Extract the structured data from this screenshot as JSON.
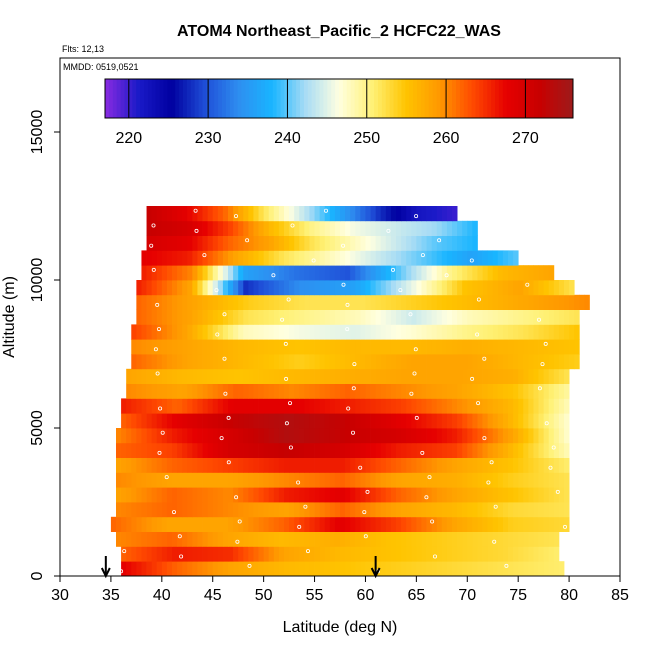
{
  "chart_data": {
    "type": "heatmap",
    "title": "ATOM4 Northeast_Pacific_2 HCFC22_WAS",
    "flights_text": "Flts: 12,13",
    "dates_text": "MMDD: 0519,0521",
    "xlabel": "Latitude (deg N)",
    "ylabel": "Altitude (m)",
    "xlim": [
      30,
      85
    ],
    "ylim": [
      0,
      17500
    ],
    "x_ticks": [
      "30",
      "35",
      "40",
      "45",
      "50",
      "55",
      "60",
      "65",
      "70",
      "75",
      "80",
      "85"
    ],
    "y_ticks": [
      "0",
      "5000",
      "10000",
      "15000"
    ],
    "colorbar": {
      "range": [
        217,
        276
      ],
      "ticks": [
        "220",
        "230",
        "240",
        "250",
        "260",
        "270"
      ],
      "colors": [
        "#8a2be2",
        "#1a1ac8",
        "#0000a0",
        "#1f4fd8",
        "#2e8ef0",
        "#19b5ff",
        "#a8dcf5",
        "#ffffe0",
        "#fff176",
        "#ffc400",
        "#ff9800",
        "#ff4a00",
        "#e60000",
        "#c80000",
        "#9e1b1b"
      ]
    },
    "layers": [
      {
        "alt": 250,
        "lat": [
          36,
          79.5
        ],
        "values": [
          268,
          262,
          258,
          256,
          255,
          254,
          253,
          252,
          251
        ]
      },
      {
        "alt": 750,
        "lat": [
          36,
          79
        ],
        "values": [
          262,
          266,
          265,
          258,
          256,
          255,
          254,
          253,
          251
        ]
      },
      {
        "alt": 1250,
        "lat": [
          35.5,
          79
        ],
        "values": [
          260,
          262,
          258,
          256,
          257,
          255,
          254,
          253,
          252
        ]
      },
      {
        "alt": 1750,
        "lat": [
          35,
          80
        ],
        "values": [
          262,
          258,
          258,
          262,
          268,
          264,
          258,
          254,
          253
        ]
      },
      {
        "alt": 2250,
        "lat": [
          35.5,
          80
        ],
        "values": [
          260,
          262,
          260,
          258,
          262,
          258,
          256,
          253,
          252
        ]
      },
      {
        "alt": 2750,
        "lat": [
          35.5,
          80
        ],
        "values": [
          258,
          262,
          260,
          266,
          268,
          262,
          258,
          255,
          252
        ]
      },
      {
        "alt": 3250,
        "lat": [
          35.5,
          80
        ],
        "values": [
          260,
          258,
          258,
          260,
          262,
          258,
          257,
          254,
          252
        ]
      },
      {
        "alt": 3750,
        "lat": [
          35.5,
          80
        ],
        "values": [
          258,
          262,
          264,
          266,
          266,
          262,
          258,
          255,
          251
        ]
      },
      {
        "alt": 4250,
        "lat": [
          35.5,
          80
        ],
        "values": [
          262,
          264,
          270,
          272,
          270,
          266,
          264,
          256,
          248
        ]
      },
      {
        "alt": 4750,
        "lat": [
          35.5,
          80
        ],
        "values": [
          260,
          266,
          270,
          274,
          272,
          270,
          266,
          258,
          247
        ]
      },
      {
        "alt": 5250,
        "lat": [
          36,
          80
        ],
        "values": [
          262,
          268,
          272,
          274,
          272,
          268,
          264,
          256,
          247
        ]
      },
      {
        "alt": 5750,
        "lat": [
          36,
          80
        ],
        "values": [
          266,
          262,
          268,
          268,
          266,
          264,
          260,
          256,
          248
        ]
      },
      {
        "alt": 6250,
        "lat": [
          36.5,
          80
        ],
        "values": [
          260,
          258,
          262,
          260,
          262,
          260,
          258,
          255,
          249
        ]
      },
      {
        "alt": 6750,
        "lat": [
          36.5,
          80
        ],
        "values": [
          258,
          256,
          255,
          256,
          257,
          258,
          258,
          257,
          252
        ]
      },
      {
        "alt": 7250,
        "lat": [
          37,
          81
        ],
        "values": [
          262,
          258,
          256,
          254,
          256,
          258,
          258,
          256,
          254
        ]
      },
      {
        "alt": 7750,
        "lat": [
          37,
          81
        ],
        "values": [
          260,
          258,
          256,
          255,
          256,
          256,
          257,
          256,
          255
        ]
      },
      {
        "alt": 8250,
        "lat": [
          37,
          81
        ],
        "values": [
          264,
          258,
          248,
          246,
          245,
          247,
          250,
          252,
          255
        ]
      },
      {
        "alt": 8750,
        "lat": [
          37.5,
          81
        ],
        "values": [
          262,
          258,
          252,
          250,
          248,
          244,
          248,
          250,
          252
        ]
      },
      {
        "alt": 9250,
        "lat": [
          37.5,
          82
        ],
        "values": [
          262,
          258,
          254,
          252,
          252,
          254,
          256,
          258,
          260
        ]
      },
      {
        "alt": 9750,
        "lat": [
          37.5,
          80.5
        ],
        "values": [
          266,
          258,
          228,
          234,
          236,
          245,
          255,
          258,
          252
        ]
      },
      {
        "alt": 10250,
        "lat": [
          38,
          78.5
        ],
        "values": [
          266,
          260,
          236,
          232,
          230,
          240,
          250,
          256,
          258
        ]
      },
      {
        "alt": 10750,
        "lat": [
          38,
          75
        ],
        "values": [
          268,
          266,
          258,
          252,
          248,
          244,
          240,
          236,
          240
        ]
      },
      {
        "alt": 11250,
        "lat": [
          38.5,
          71
        ],
        "values": [
          270,
          268,
          262,
          258,
          252,
          248,
          244,
          240,
          238
        ]
      },
      {
        "alt": 11750,
        "lat": [
          38.5,
          71
        ],
        "values": [
          272,
          270,
          264,
          256,
          250,
          246,
          244,
          242,
          238
        ]
      },
      {
        "alt": 12250,
        "lat": [
          38.5,
          69
        ],
        "values": [
          272,
          268,
          262,
          252,
          244,
          236,
          228,
          222,
          220
        ]
      }
    ],
    "arrows_lat": [
      34.5,
      61
    ]
  }
}
